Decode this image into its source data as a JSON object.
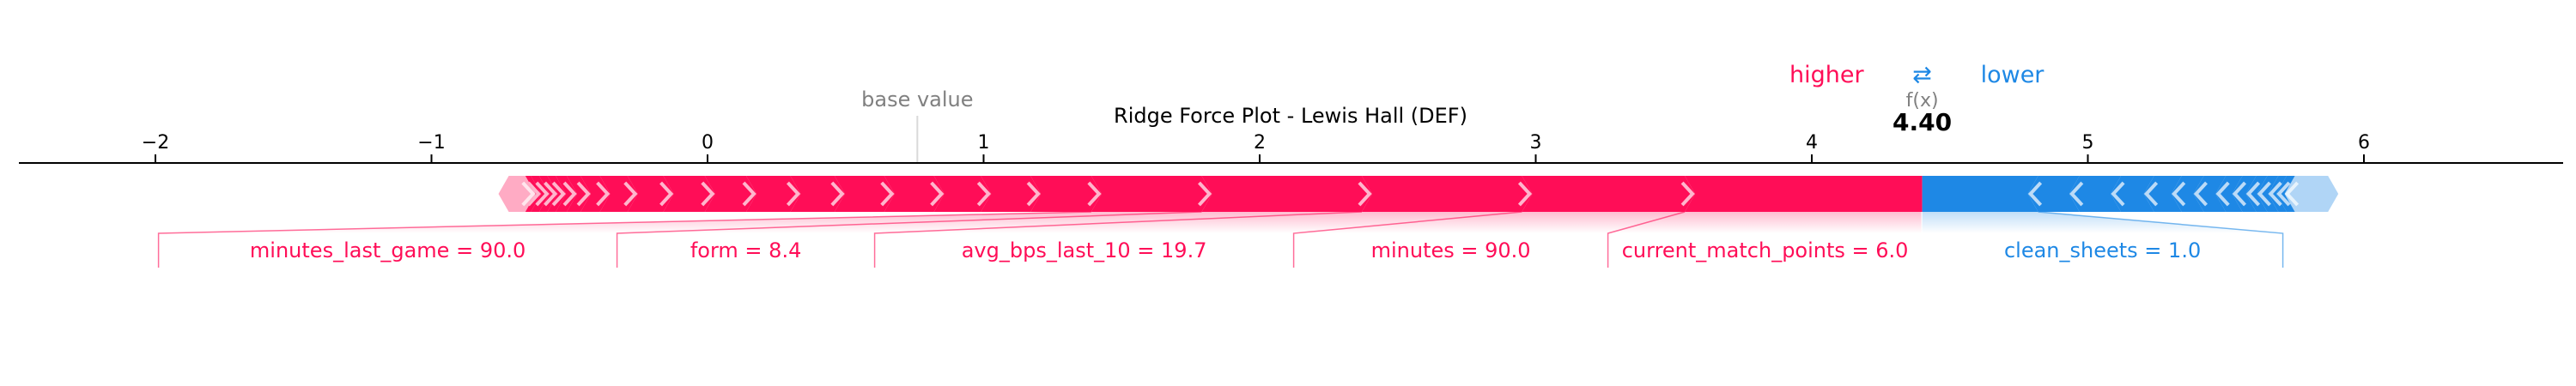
{
  "chart_data": {
    "type": "force",
    "title": "Ridge Force Plot - Lewis Hall (DEF)",
    "base_value_label": "base value",
    "fx_label": "f(x)",
    "output_value": 4.4,
    "output_value_text": "4.40",
    "base_value": 0.76,
    "legend": {
      "higher": "higher",
      "lower": "lower",
      "arrows": "⇄"
    },
    "xlim": [
      -2.5,
      6.7
    ],
    "xticks": [
      {
        "value": -2,
        "label": "−2"
      },
      {
        "value": -1,
        "label": "−1"
      },
      {
        "value": 0,
        "label": "0"
      },
      {
        "value": 1,
        "label": "1"
      },
      {
        "value": 2,
        "label": "2"
      },
      {
        "value": 3,
        "label": "3"
      },
      {
        "value": 4,
        "label": "4"
      },
      {
        "value": 5,
        "label": "5"
      },
      {
        "value": 6,
        "label": "6"
      }
    ],
    "positive_features": [
      {
        "label": "current_match_points = 6.0",
        "start": 3.54,
        "end": 4.4
      },
      {
        "label": "minutes = 90.0",
        "start": 2.95,
        "end": 3.54
      },
      {
        "label": "avg_bps_last_10 = 19.7",
        "start": 2.37,
        "end": 2.95
      },
      {
        "label": "form = 8.4",
        "start": 1.79,
        "end": 2.37
      },
      {
        "label": "minutes_last_game = 90.0",
        "start": 1.39,
        "end": 1.79
      },
      {
        "label": "",
        "start": 1.17,
        "end": 1.39
      },
      {
        "label": "",
        "start": 0.99,
        "end": 1.17
      },
      {
        "label": "",
        "start": 0.82,
        "end": 0.99
      },
      {
        "label": "",
        "start": 0.64,
        "end": 0.82
      },
      {
        "label": "",
        "start": 0.46,
        "end": 0.64
      },
      {
        "label": "",
        "start": 0.3,
        "end": 0.46
      },
      {
        "label": "",
        "start": 0.14,
        "end": 0.3
      },
      {
        "label": "",
        "start": -0.01,
        "end": 0.14
      },
      {
        "label": "",
        "start": -0.16,
        "end": -0.01
      },
      {
        "label": "",
        "start": -0.29,
        "end": -0.16
      },
      {
        "label": "",
        "start": -0.39,
        "end": -0.29
      },
      {
        "label": "",
        "start": -0.46,
        "end": -0.39
      },
      {
        "label": "",
        "start": -0.51,
        "end": -0.46
      },
      {
        "label": "",
        "start": -0.55,
        "end": -0.51
      },
      {
        "label": "",
        "start": -0.58,
        "end": -0.55
      },
      {
        "label": "",
        "start": -0.61,
        "end": -0.58
      },
      {
        "label": "",
        "start": -0.64,
        "end": -0.61
      },
      {
        "label": "",
        "start": -0.66,
        "end": -0.64
      },
      {
        "label": "",
        "start": -0.72,
        "end": -0.66
      }
    ],
    "negative_features": [
      {
        "label": "clean_sheets = 1.0",
        "start": 4.4,
        "end": 4.82
      },
      {
        "label": "",
        "start": 4.82,
        "end": 4.97
      },
      {
        "label": "",
        "start": 4.97,
        "end": 5.12
      },
      {
        "label": "",
        "start": 5.12,
        "end": 5.24
      },
      {
        "label": "",
        "start": 5.24,
        "end": 5.34
      },
      {
        "label": "",
        "start": 5.34,
        "end": 5.42
      },
      {
        "label": "",
        "start": 5.42,
        "end": 5.5
      },
      {
        "label": "",
        "start": 5.5,
        "end": 5.56
      },
      {
        "label": "",
        "start": 5.56,
        "end": 5.61
      },
      {
        "label": "",
        "start": 5.61,
        "end": 5.65
      },
      {
        "label": "",
        "start": 5.65,
        "end": 5.69
      },
      {
        "label": "",
        "start": 5.69,
        "end": 5.72
      },
      {
        "label": "",
        "start": 5.72,
        "end": 5.75
      },
      {
        "label": "",
        "start": 5.75,
        "end": 5.87
      }
    ],
    "colors": {
      "positive": "#ff0d57",
      "negative": "#1e88e5",
      "axis": "#000000",
      "muted": "#808080"
    }
  }
}
